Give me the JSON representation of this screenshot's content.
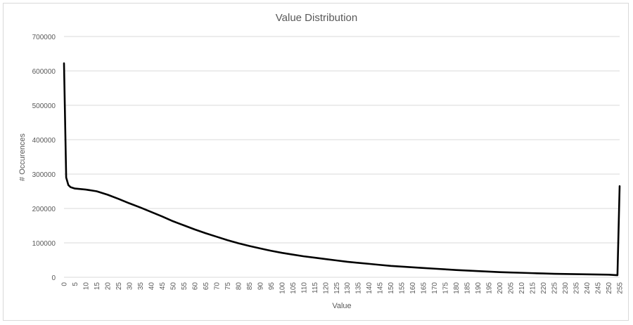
{
  "chart_data": {
    "type": "line",
    "title": "Value Distribution",
    "xlabel": "Value",
    "ylabel": "# Occurences",
    "xlim": [
      0,
      255
    ],
    "ylim": [
      0,
      700000
    ],
    "grid": "horizontal",
    "legend": "none",
    "y_ticks": [
      0,
      100000,
      200000,
      300000,
      400000,
      500000,
      600000,
      700000
    ],
    "x_ticks": [
      0,
      5,
      10,
      15,
      20,
      25,
      30,
      35,
      40,
      45,
      50,
      55,
      60,
      65,
      70,
      75,
      80,
      85,
      90,
      95,
      100,
      105,
      110,
      115,
      120,
      125,
      130,
      135,
      140,
      145,
      150,
      155,
      160,
      165,
      170,
      175,
      180,
      185,
      190,
      195,
      200,
      205,
      210,
      215,
      220,
      225,
      230,
      235,
      240,
      245,
      250,
      255
    ],
    "series_color": "#000000",
    "points": [
      [
        0,
        622000
      ],
      [
        1,
        290000
      ],
      [
        2,
        268000
      ],
      [
        3,
        262000
      ],
      [
        5,
        258000
      ],
      [
        10,
        255000
      ],
      [
        15,
        250000
      ],
      [
        20,
        240000
      ],
      [
        25,
        228000
      ],
      [
        30,
        215000
      ],
      [
        35,
        203000
      ],
      [
        40,
        190000
      ],
      [
        45,
        177000
      ],
      [
        50,
        163000
      ],
      [
        55,
        151000
      ],
      [
        60,
        139000
      ],
      [
        65,
        128000
      ],
      [
        70,
        118000
      ],
      [
        75,
        108000
      ],
      [
        80,
        99000
      ],
      [
        85,
        91000
      ],
      [
        90,
        84000
      ],
      [
        95,
        77000
      ],
      [
        100,
        71000
      ],
      [
        105,
        66000
      ],
      [
        110,
        61000
      ],
      [
        115,
        57000
      ],
      [
        120,
        53000
      ],
      [
        125,
        49000
      ],
      [
        130,
        45000
      ],
      [
        135,
        42000
      ],
      [
        140,
        39000
      ],
      [
        145,
        36000
      ],
      [
        150,
        33000
      ],
      [
        155,
        31000
      ],
      [
        160,
        29000
      ],
      [
        165,
        27000
      ],
      [
        170,
        25000
      ],
      [
        175,
        23000
      ],
      [
        180,
        21000
      ],
      [
        185,
        19500
      ],
      [
        190,
        18000
      ],
      [
        195,
        16500
      ],
      [
        200,
        15000
      ],
      [
        205,
        14000
      ],
      [
        210,
        13000
      ],
      [
        215,
        12000
      ],
      [
        220,
        11000
      ],
      [
        225,
        10000
      ],
      [
        230,
        9500
      ],
      [
        235,
        9000
      ],
      [
        240,
        8500
      ],
      [
        245,
        8000
      ],
      [
        250,
        7500
      ],
      [
        254,
        6000
      ],
      [
        255,
        265000
      ]
    ]
  }
}
